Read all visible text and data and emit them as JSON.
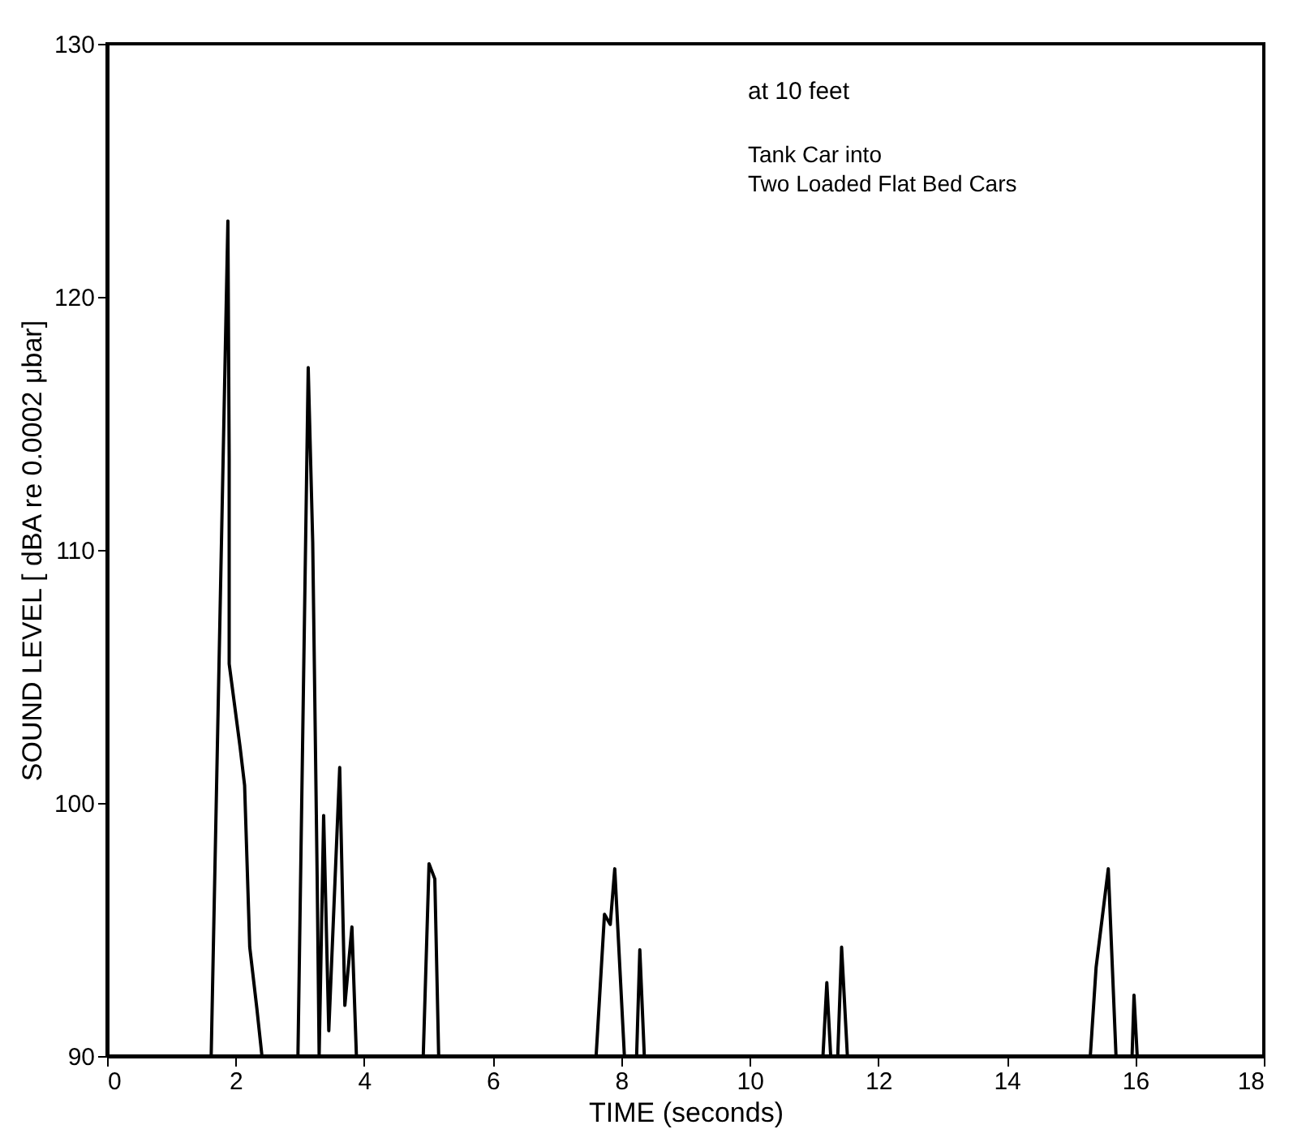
{
  "chart_data": {
    "type": "line",
    "xlabel": "TIME (seconds)",
    "ylabel": "SOUND LEVEL [ dBA re 0.0002 μbar]",
    "annotations": [
      "at 10 feet",
      "Tank Car into\nTwo Loaded Flat Bed Cars"
    ],
    "x": [
      0,
      1.62,
      1.88,
      1.9,
      1.9,
      2.07,
      2.14,
      2.22,
      2.33,
      2.41,
      2.97,
      3.13,
      3.2,
      3.27,
      3.3,
      3.37,
      3.45,
      3.62,
      3.7,
      3.81,
      3.88,
      4.92,
      5.01,
      5.1,
      5.16,
      7.61,
      7.74,
      7.83,
      7.9,
      8.05,
      8.24,
      8.29,
      8.36,
      11.14,
      11.2,
      11.26,
      11.37,
      11.43,
      11.52,
      15.3,
      15.39,
      15.58,
      15.7,
      15.95,
      15.98,
      16.03,
      18
    ],
    "series": [
      {
        "color": "#000000",
        "values": [
          90,
          90,
          123.0,
          113.6,
          105.5,
          102.2,
          100.7,
          94.3,
          91.9,
          90,
          90,
          117.2,
          110.3,
          96.9,
          90,
          99.5,
          91,
          101.4,
          92,
          95.1,
          90,
          90,
          97.6,
          97.0,
          90,
          90,
          95.6,
          95.2,
          97.4,
          90,
          90,
          94.2,
          90,
          90,
          92.9,
          90,
          90,
          94.3,
          90,
          90,
          93.5,
          97.4,
          90,
          90,
          92.4,
          90,
          90
        ]
      }
    ],
    "xlim": [
      0,
      18
    ],
    "xticks": [
      0,
      2,
      4,
      6,
      8,
      10,
      12,
      14,
      16,
      18
    ],
    "ylim": [
      90,
      130
    ],
    "yticks": [
      90,
      100,
      110,
      120,
      130
    ],
    "grid": false,
    "marker": "none",
    "line_style": "solid"
  }
}
